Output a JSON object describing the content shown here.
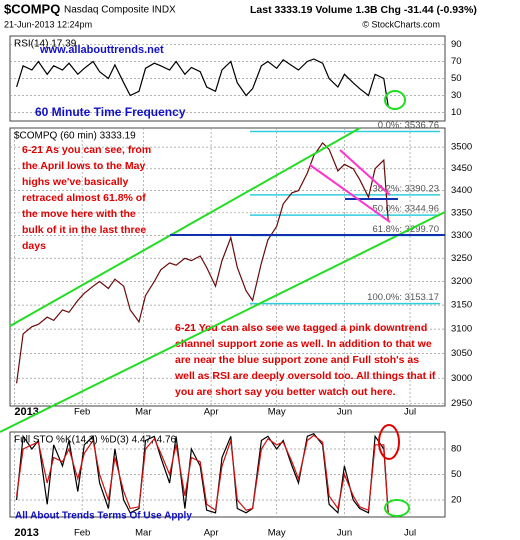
{
  "header": {
    "symbol": "$COMPQ",
    "name": "Nasdaq Composite INDX",
    "date": "21-Jun-2013 12:24pm",
    "quote": "Last 3333.19  Volume 1.3B  Chg -31.44 (-0.93%)",
    "source": "© StockCharts.com"
  },
  "chart_data": [
    {
      "type": "line",
      "title": "RSI(14) 17.39",
      "annotations": [
        "www.allabouttrends.net",
        "60 Minute Time Frequency"
      ],
      "xlim": [
        -2,
        197
      ],
      "ylim": [
        0,
        100
      ],
      "yticks": [
        10,
        30,
        50,
        70,
        90
      ],
      "grid": true,
      "x": [
        1,
        4,
        8,
        11,
        15,
        18,
        22,
        25,
        29,
        32,
        36,
        39,
        43,
        46,
        50,
        53,
        57,
        60,
        64,
        67,
        71,
        74,
        78,
        81,
        85,
        88,
        92,
        95,
        99,
        102,
        106,
        109,
        113,
        116,
        120,
        123,
        127,
        130,
        134,
        137,
        141,
        144,
        148,
        151,
        155,
        158,
        162,
        165,
        169,
        171
      ],
      "series": [
        {
          "color": "#000000",
          "values": [
            40,
            65,
            60,
            70,
            55,
            65,
            60,
            68,
            55,
            62,
            70,
            58,
            50,
            66,
            45,
            30,
            35,
            62,
            68,
            65,
            60,
            70,
            55,
            63,
            58,
            40,
            35,
            60,
            70,
            45,
            30,
            38,
            65,
            70,
            62,
            72,
            65,
            60,
            70,
            73,
            68,
            50,
            40,
            55,
            45,
            38,
            30,
            55,
            50,
            17.39
          ]
        }
      ]
    },
    {
      "type": "line",
      "title": "$COMPQ (60 min) 3333.19",
      "log_scale": true,
      "xlim": [
        -2,
        197
      ],
      "ylim": [
        2945,
        3545
      ],
      "yticks": [
        2950,
        3000,
        3050,
        3100,
        3150,
        3200,
        3250,
        3300,
        3350,
        3400,
        3450,
        3500
      ],
      "grid": true,
      "xticks": [
        {
          "value": 0,
          "label": "2013"
        },
        {
          "value": 31,
          "label": "Feb"
        },
        {
          "value": 59,
          "label": "Mar"
        },
        {
          "value": 90,
          "label": "Apr"
        },
        {
          "value": 120,
          "label": "May"
        },
        {
          "value": 151,
          "label": "Jun"
        },
        {
          "value": 181,
          "label": "Jul"
        }
      ],
      "x": [
        1,
        4,
        8,
        11,
        15,
        18,
        22,
        25,
        29,
        32,
        36,
        39,
        43,
        46,
        50,
        53,
        57,
        60,
        64,
        67,
        71,
        74,
        78,
        81,
        85,
        88,
        92,
        95,
        99,
        102,
        106,
        109,
        113,
        116,
        120,
        123,
        127,
        130,
        134,
        137,
        141,
        144,
        148,
        151,
        155,
        158,
        162,
        165,
        169,
        171
      ],
      "series": [
        {
          "color": "#6a0a0a",
          "values": [
            2990,
            3090,
            3105,
            3110,
            3125,
            3118,
            3140,
            3135,
            3160,
            3175,
            3190,
            3200,
            3185,
            3205,
            3190,
            3140,
            3115,
            3170,
            3200,
            3225,
            3240,
            3235,
            3250,
            3245,
            3255,
            3230,
            3190,
            3245,
            3295,
            3230,
            3180,
            3160,
            3240,
            3290,
            3320,
            3370,
            3395,
            3400,
            3440,
            3480,
            3510,
            3495,
            3445,
            3460,
            3450,
            3425,
            3385,
            3450,
            3470,
            3333.19
          ]
        }
      ],
      "fib_levels": [
        {
          "value": 3536.76,
          "label": "0.0%: 3536.76"
        },
        {
          "value": 3390.23,
          "label": "38.2%: 3390.23"
        },
        {
          "value": 3344.96,
          "label": "50.0%: 3344.96"
        },
        {
          "value": 3299.7,
          "label": "61.8%: 3299.70"
        },
        {
          "value": 3153.17,
          "label": "100.0%: 3153.17"
        }
      ],
      "notes": [
        [
          "6-21 As you can see, from",
          "the April lows to the May",
          "highs we've basically",
          "retraced almost 61.8% of",
          "the move here with the",
          "bulk of it in the last three",
          "days"
        ],
        [
          "6-21 You can also see we tagged a pink downtrend",
          "channel support zone as well. In addition to that we",
          "are near the blue support zone and Full stoh's as",
          "well as RSI are deeply oversold too. All things that if",
          "you are short say you better watch out here."
        ]
      ]
    },
    {
      "type": "line",
      "title": "Full STO %K(14,3) %D(3) 4.47, 4.76",
      "annotations": [
        "All About Trends Terms Of Use Apply"
      ],
      "xlim": [
        -2,
        197
      ],
      "ylim": [
        0,
        100
      ],
      "yticks": [
        20,
        50,
        80
      ],
      "grid": true,
      "xticks": [
        {
          "value": 0,
          "label": "2013"
        },
        {
          "value": 31,
          "label": "Feb"
        },
        {
          "value": 59,
          "label": "Mar"
        },
        {
          "value": 90,
          "label": "Apr"
        },
        {
          "value": 120,
          "label": "May"
        },
        {
          "value": 151,
          "label": "Jun"
        },
        {
          "value": 181,
          "label": "Jul"
        }
      ],
      "x": [
        1,
        4,
        8,
        11,
        15,
        18,
        22,
        25,
        29,
        32,
        36,
        39,
        43,
        46,
        50,
        53,
        57,
        60,
        64,
        67,
        71,
        74,
        78,
        81,
        85,
        88,
        92,
        95,
        99,
        102,
        106,
        109,
        113,
        116,
        120,
        123,
        127,
        130,
        134,
        137,
        141,
        144,
        148,
        151,
        155,
        158,
        162,
        165,
        169,
        171
      ],
      "series": [
        {
          "color": "#000000",
          "values": [
            20,
            95,
            80,
            90,
            15,
            85,
            60,
            90,
            30,
            85,
            95,
            40,
            10,
            80,
            20,
            5,
            10,
            90,
            95,
            70,
            40,
            95,
            10,
            80,
            60,
            8,
            5,
            70,
            95,
            10,
            5,
            10,
            90,
            95,
            80,
            90,
            60,
            40,
            95,
            98,
            85,
            15,
            5,
            60,
            20,
            10,
            5,
            95,
            80,
            4.47
          ]
        },
        {
          "color": "#d01010",
          "values": [
            25,
            80,
            85,
            88,
            40,
            70,
            65,
            80,
            45,
            75,
            90,
            50,
            20,
            70,
            30,
            10,
            12,
            80,
            92,
            75,
            50,
            85,
            25,
            70,
            65,
            15,
            8,
            60,
            90,
            20,
            8,
            10,
            80,
            92,
            85,
            88,
            65,
            45,
            90,
            96,
            88,
            25,
            10,
            50,
            25,
            12,
            8,
            85,
            85,
            4.76
          ]
        }
      ]
    }
  ]
}
